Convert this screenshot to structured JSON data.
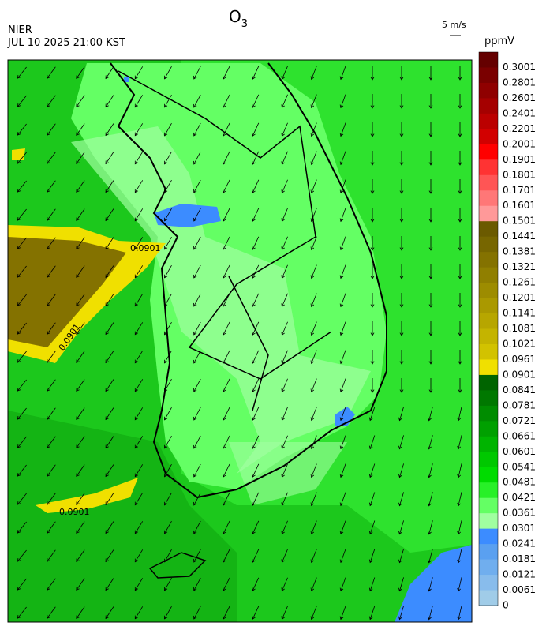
{
  "header": {
    "title": {
      "main": "O",
      "sub": "3"
    },
    "source": "NIER",
    "datetime": "JUL 10 2025 21:00 KST",
    "wind_scale": "5 m/s"
  },
  "colorbar": {
    "unit": "ppmV",
    "labels": [
      "0.3001",
      "0.2801",
      "0.2601",
      "0.2401",
      "0.2201",
      "0.2001",
      "0.1901",
      "0.1801",
      "0.1701",
      "0.1601",
      "0.1501",
      "0.1441",
      "0.1381",
      "0.1321",
      "0.1261",
      "0.1201",
      "0.1141",
      "0.1081",
      "0.1021",
      "0.0961",
      "0.0901",
      "0.0841",
      "0.0781",
      "0.0721",
      "0.0661",
      "0.0601",
      "0.0541",
      "0.0481",
      "0.0421",
      "0.0361",
      "0.0301",
      "0.0241",
      "0.0181",
      "0.0121",
      "0.0061",
      "0"
    ],
    "colors": [
      "#650000",
      "#7a0000",
      "#8f0000",
      "#a50000",
      "#bb0000",
      "#d20000",
      "#ff0000",
      "#ff3333",
      "#ff5555",
      "#ff7777",
      "#ff9999",
      "#6b5a00",
      "#776600",
      "#847200",
      "#907f00",
      "#9d8c00",
      "#aa9900",
      "#b7a600",
      "#c4b400",
      "#d2c200",
      "#f0e000",
      "#006400",
      "#007800",
      "#008c00",
      "#00a000",
      "#00b400",
      "#00c800",
      "#00dc00",
      "#28f028",
      "#64ff64",
      "#a0ffa0",
      "#3c8cff",
      "#5aa0f0",
      "#70aeee",
      "#88bcec",
      "#a0cce8"
    ]
  },
  "map": {
    "contour_labels": [
      "0.0901",
      "0.0901",
      "0.0901"
    ]
  }
}
